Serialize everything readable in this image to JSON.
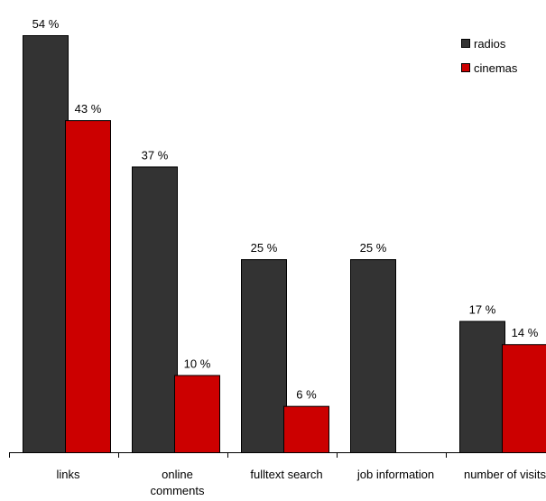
{
  "chart_data": {
    "type": "bar",
    "title": "",
    "xlabel": "",
    "ylabel": "",
    "ylim": [
      0,
      54
    ],
    "grid": false,
    "legend_position": "top-right",
    "categories": [
      "links",
      "online comments",
      "fulltext search",
      "job information",
      "number of visits"
    ],
    "series": [
      {
        "name": "radios",
        "color": "#333333",
        "values": [
          54,
          37,
          25,
          25,
          17
        ],
        "labels": [
          "54 %",
          "37 %",
          "25 %",
          "25 %",
          "17 %"
        ]
      },
      {
        "name": "cinemas",
        "color": "#cc0000",
        "values": [
          43,
          10,
          6,
          null,
          14
        ],
        "labels": [
          "43 %",
          "10 %",
          "6 %",
          null,
          "14 %"
        ]
      }
    ]
  }
}
